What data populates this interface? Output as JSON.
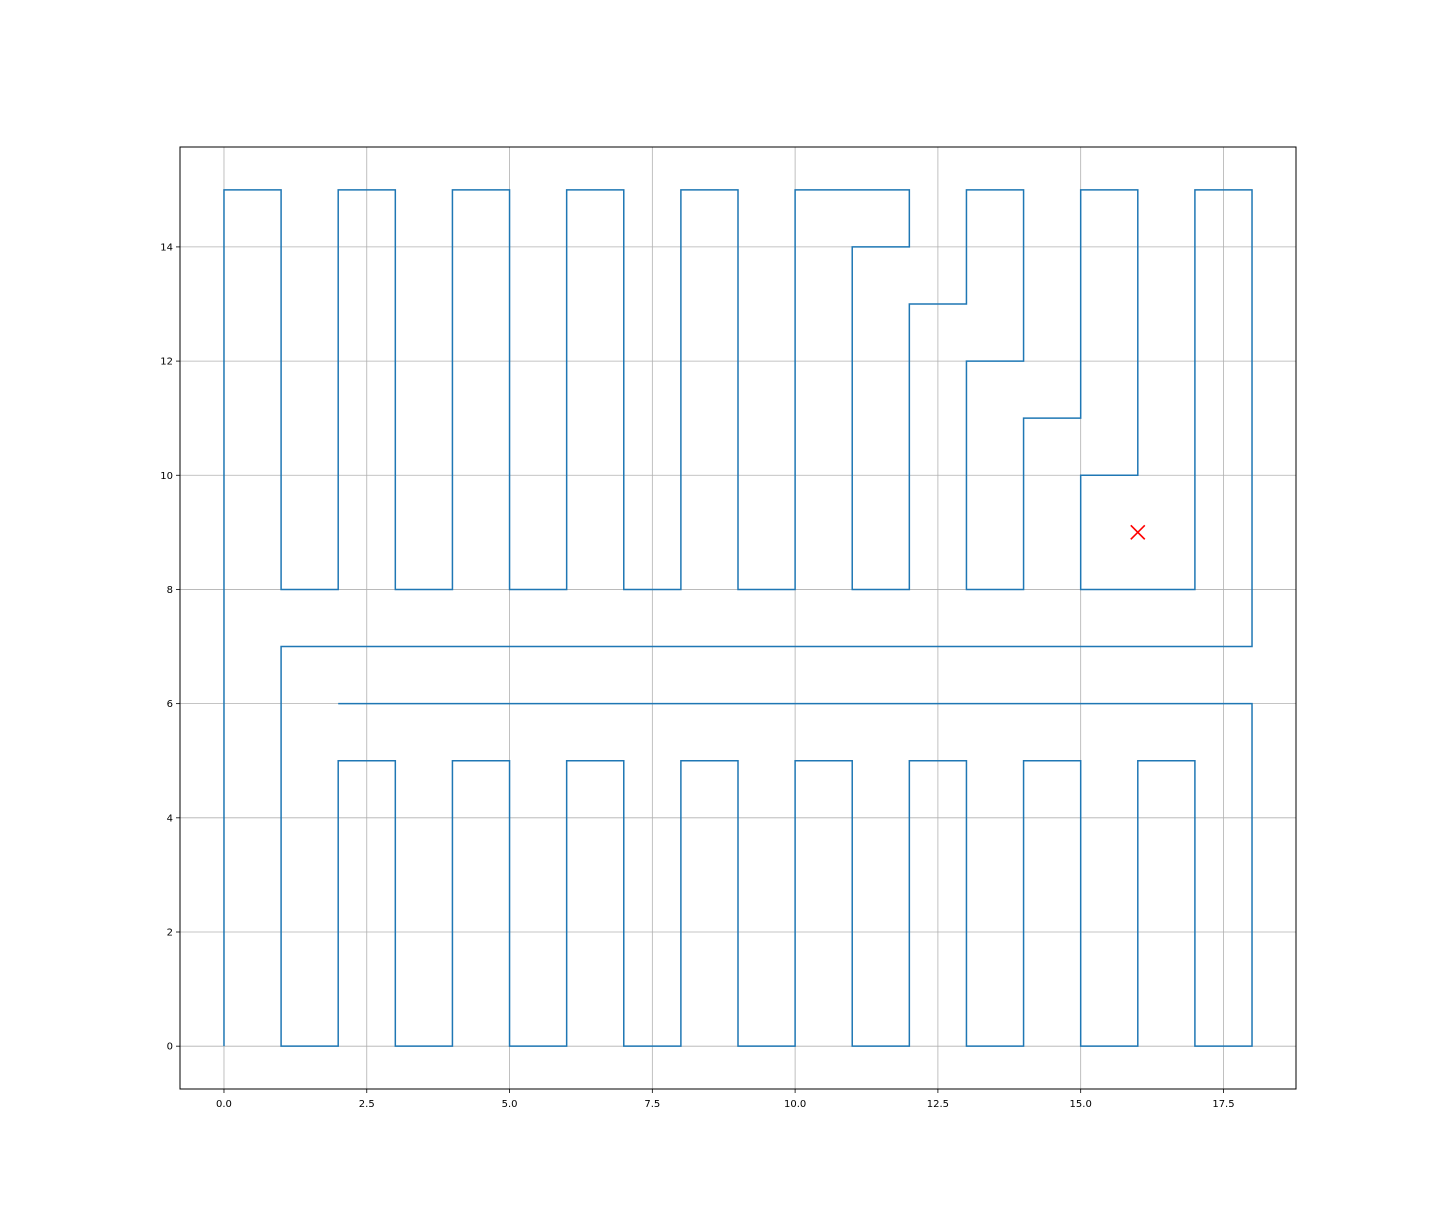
{
  "chart_data": {
    "type": "line",
    "title": "",
    "xlabel": "",
    "ylabel": "",
    "xlim": [
      -0.77,
      18.77
    ],
    "ylim": [
      -0.75,
      15.75
    ],
    "grid": true,
    "x_ticks": [
      0.0,
      2.5,
      5.0,
      7.5,
      10.0,
      12.5,
      15.0,
      17.5
    ],
    "x_tick_labels": [
      "0.0",
      "2.5",
      "5.0",
      "7.5",
      "10.0",
      "12.5",
      "15.0",
      "17.5"
    ],
    "y_ticks": [
      0,
      2,
      4,
      6,
      8,
      10,
      12,
      14
    ],
    "y_tick_labels": [
      "0",
      "2",
      "4",
      "6",
      "8",
      "10",
      "12",
      "14"
    ],
    "series": [
      {
        "color": "#1f77b4",
        "points": [
          [
            0,
            0
          ],
          [
            0,
            15
          ],
          [
            1,
            15
          ],
          [
            1,
            8
          ],
          [
            2,
            8
          ],
          [
            2,
            15
          ],
          [
            3,
            15
          ],
          [
            3,
            8
          ],
          [
            4,
            8
          ],
          [
            4,
            15
          ],
          [
            5,
            15
          ],
          [
            5,
            8
          ],
          [
            6,
            8
          ],
          [
            6,
            15
          ],
          [
            7,
            15
          ],
          [
            7,
            8
          ],
          [
            8,
            8
          ],
          [
            8,
            15
          ],
          [
            9,
            15
          ],
          [
            9,
            8
          ],
          [
            10,
            8
          ],
          [
            10,
            15
          ],
          [
            12,
            15
          ],
          [
            12,
            14
          ],
          [
            11,
            14
          ],
          [
            11,
            8
          ],
          [
            12,
            8
          ],
          [
            12,
            13
          ],
          [
            13,
            13
          ],
          [
            13,
            15
          ],
          [
            14,
            15
          ],
          [
            14,
            12
          ],
          [
            13,
            12
          ],
          [
            13,
            8
          ],
          [
            14,
            8
          ],
          [
            14,
            11
          ],
          [
            15,
            11
          ],
          [
            15,
            15
          ],
          [
            16,
            15
          ],
          [
            16,
            10
          ],
          [
            15,
            10
          ],
          [
            15,
            8
          ],
          [
            17,
            8
          ],
          [
            17,
            15
          ],
          [
            18,
            15
          ],
          [
            18,
            7
          ],
          [
            1,
            7
          ],
          [
            1,
            0
          ],
          [
            2,
            0
          ],
          [
            2,
            5
          ],
          [
            3,
            5
          ],
          [
            3,
            0
          ],
          [
            4,
            0
          ],
          [
            4,
            5
          ],
          [
            5,
            5
          ],
          [
            5,
            0
          ],
          [
            6,
            0
          ],
          [
            6,
            5
          ],
          [
            7,
            5
          ],
          [
            7,
            0
          ],
          [
            8,
            0
          ],
          [
            8,
            5
          ],
          [
            9,
            5
          ],
          [
            9,
            0
          ],
          [
            10,
            0
          ],
          [
            10,
            5
          ],
          [
            11,
            5
          ],
          [
            11,
            0
          ],
          [
            12,
            0
          ],
          [
            12,
            5
          ],
          [
            13,
            5
          ],
          [
            13,
            0
          ],
          [
            14,
            0
          ],
          [
            14,
            5
          ],
          [
            15,
            5
          ],
          [
            15,
            0
          ],
          [
            16,
            0
          ],
          [
            16,
            5
          ],
          [
            17,
            5
          ],
          [
            17,
            0
          ],
          [
            18,
            0
          ],
          [
            18,
            6
          ],
          [
            2,
            6
          ]
        ]
      }
    ],
    "markers": [
      {
        "x": 16,
        "y": 9,
        "symbol": "x",
        "color": "#ff0000"
      }
    ]
  }
}
